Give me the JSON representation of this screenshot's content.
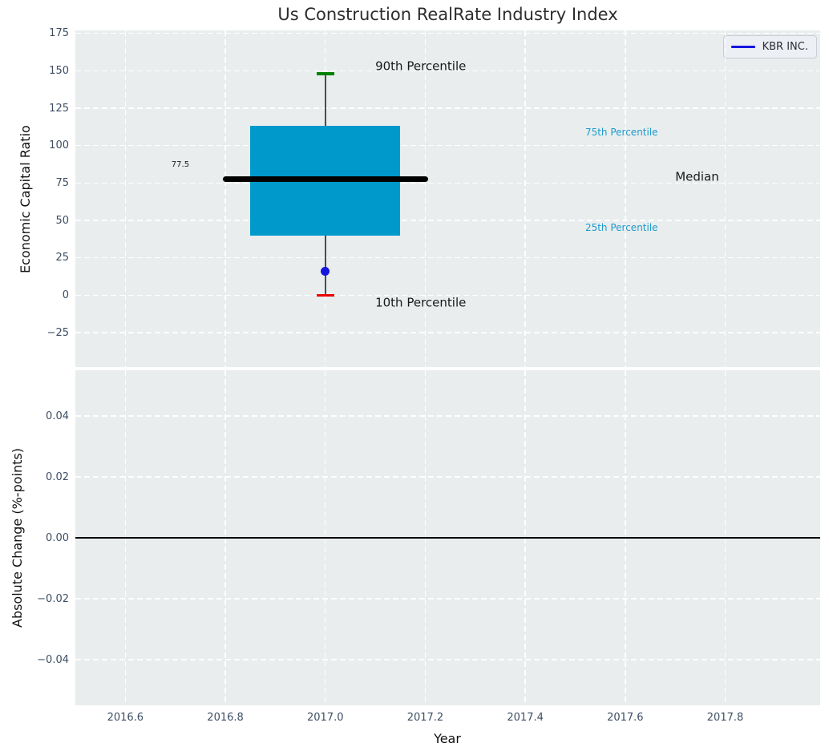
{
  "title": "Us Construction RealRate Industry Index",
  "legend": {
    "label": "KBR INC."
  },
  "colors": {
    "axes_bg": "#e9eded",
    "grid": "#ffffff",
    "tick_label": "#3d4e63",
    "box_fill": "#0099cc",
    "median_line": "#000000",
    "whisker": "#4d4d4d",
    "p90_cap": "#008000",
    "p10_cap": "#ea0000",
    "company_dot": "#1515e0",
    "legend_line": "#1515e0",
    "annotation_dark": "#1a1a1a",
    "annotation_cyan": "#1e9bcd",
    "zero_line": "#000000"
  },
  "chart_data": [
    {
      "type": "box",
      "title": "Us Construction RealRate Industry Index",
      "ylabel": "Economic Capital Ratio",
      "xlim": [
        2016.5,
        2017.99
      ],
      "ylim": [
        -48,
        177
      ],
      "grid": true,
      "yticks": {
        "values": [
          -25,
          0,
          25,
          50,
          75,
          100,
          125,
          150,
          175
        ],
        "labels": [
          "−25",
          "0",
          "25",
          "50",
          "75",
          "100",
          "125",
          "150",
          "175"
        ]
      },
      "box": {
        "x_center": 2017.0,
        "box_x": [
          2016.85,
          2017.15
        ],
        "median_x": [
          2016.8,
          2017.2
        ],
        "cap_x": [
          2016.982,
          2017.018
        ],
        "p10": 0,
        "q25": 40,
        "median": 77.5,
        "q75": 113,
        "p90": 148
      },
      "company_point": {
        "name": "KBR INC.",
        "x": 2017.0,
        "y": 16
      },
      "annotations": [
        {
          "text": "90th Percentile",
          "x": 2017.1,
          "y": 153,
          "size": 15,
          "color": "dark",
          "align": "left"
        },
        {
          "text": "10th Percentile",
          "x": 2017.1,
          "y": -5,
          "size": 15,
          "color": "dark",
          "align": "left"
        },
        {
          "text": "75th Percentile",
          "x": 2017.52,
          "y": 109,
          "size": 12,
          "color": "cyan",
          "align": "left"
        },
        {
          "text": "25th Percentile",
          "x": 2017.52,
          "y": 45,
          "size": 12,
          "color": "cyan",
          "align": "left"
        },
        {
          "text": "Median",
          "x": 2017.7,
          "y": 79,
          "size": 15,
          "color": "dark",
          "align": "left"
        },
        {
          "text": "77.5",
          "x": 2016.71,
          "y": 87,
          "size": 10,
          "color": "dark",
          "align": "center"
        }
      ]
    },
    {
      "type": "line",
      "ylabel": "Absolute Change (%-points)",
      "xlabel": "Year",
      "xlim": [
        2016.5,
        2017.99
      ],
      "ylim": [
        -0.055,
        0.055
      ],
      "grid": true,
      "zero_line": 0,
      "series": [],
      "yticks": {
        "values": [
          -0.04,
          -0.02,
          0,
          0.02,
          0.04
        ],
        "labels": [
          "−0.04",
          "−0.02",
          "0.00",
          "0.02",
          "0.04"
        ]
      },
      "xticks": {
        "values": [
          2016.6,
          2016.8,
          2017.0,
          2017.2,
          2017.4,
          2017.6,
          2017.8
        ],
        "labels": [
          "2016.6",
          "2016.8",
          "2017.0",
          "2017.2",
          "2017.4",
          "2017.6",
          "2017.8"
        ]
      }
    }
  ]
}
